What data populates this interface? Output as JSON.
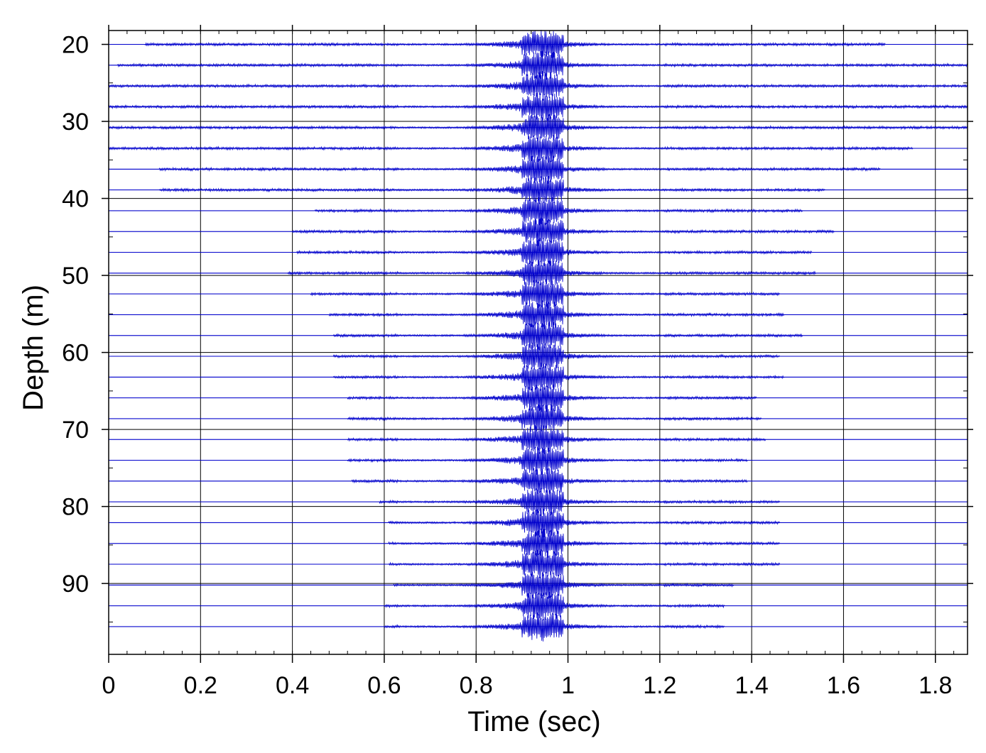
{
  "chart_data": {
    "type": "line",
    "chart_style": "seismic wiggle trace plot (one trace per depth)",
    "xlabel": "Time (sec)",
    "ylabel": "Depth (m)",
    "xlim": [
      0,
      1.87
    ],
    "ylim": [
      99.2,
      18.2
    ],
    "y_axis_inverted": true,
    "x_ticks": [
      0,
      0.2,
      0.4,
      0.6,
      0.8,
      1,
      1.2,
      1.4,
      1.6,
      1.8
    ],
    "x_tick_labels": [
      "0",
      "0.2",
      "0.4",
      "0.6",
      "0.8",
      "1",
      "1.2",
      "1.4",
      "1.6",
      "1.8"
    ],
    "y_ticks": [
      20,
      30,
      40,
      50,
      60,
      70,
      80,
      90
    ],
    "y_tick_labels": [
      "20",
      "30",
      "40",
      "50",
      "60",
      "70",
      "80",
      "90"
    ],
    "grid": true,
    "grid_color": "#000000",
    "trace_color": "#0000cc",
    "legend": "none",
    "first_break_time_sec": 0.93,
    "peak_energy_window_sec": [
      0.9,
      0.99
    ],
    "traces": [
      {
        "depth": 20.0,
        "start": 0.08,
        "end": 1.69
      },
      {
        "depth": 22.7,
        "start": 0.02,
        "end": 1.87
      },
      {
        "depth": 25.4,
        "start": 0.0,
        "end": 1.87
      },
      {
        "depth": 28.1,
        "start": 0.0,
        "end": 1.87
      },
      {
        "depth": 30.8,
        "start": 0.0,
        "end": 1.87
      },
      {
        "depth": 33.5,
        "start": 0.0,
        "end": 1.75
      },
      {
        "depth": 36.2,
        "start": 0.11,
        "end": 1.68
      },
      {
        "depth": 38.9,
        "start": 0.11,
        "end": 1.56
      },
      {
        "depth": 41.6,
        "start": 0.45,
        "end": 1.51
      },
      {
        "depth": 44.3,
        "start": 0.4,
        "end": 1.58
      },
      {
        "depth": 47.0,
        "start": 0.41,
        "end": 1.53
      },
      {
        "depth": 49.7,
        "start": 0.39,
        "end": 1.54
      },
      {
        "depth": 52.4,
        "start": 0.44,
        "end": 1.46
      },
      {
        "depth": 55.1,
        "start": 0.48,
        "end": 1.47
      },
      {
        "depth": 57.8,
        "start": 0.49,
        "end": 1.51
      },
      {
        "depth": 60.5,
        "start": 0.49,
        "end": 1.46
      },
      {
        "depth": 63.2,
        "start": 0.49,
        "end": 1.47
      },
      {
        "depth": 65.9,
        "start": 0.52,
        "end": 1.41
      },
      {
        "depth": 68.6,
        "start": 0.52,
        "end": 1.42
      },
      {
        "depth": 71.3,
        "start": 0.52,
        "end": 1.43
      },
      {
        "depth": 74.0,
        "start": 0.52,
        "end": 1.39
      },
      {
        "depth": 76.7,
        "start": 0.53,
        "end": 1.39
      },
      {
        "depth": 79.4,
        "start": 0.59,
        "end": 1.46
      },
      {
        "depth": 82.1,
        "start": 0.61,
        "end": 1.46
      },
      {
        "depth": 84.8,
        "start": 0.61,
        "end": 1.46
      },
      {
        "depth": 87.5,
        "start": 0.61,
        "end": 1.46
      },
      {
        "depth": 90.2,
        "start": 0.62,
        "end": 1.36
      },
      {
        "depth": 92.9,
        "start": 0.6,
        "end": 1.34
      },
      {
        "depth": 95.6,
        "start": 0.6,
        "end": 1.34
      }
    ]
  }
}
